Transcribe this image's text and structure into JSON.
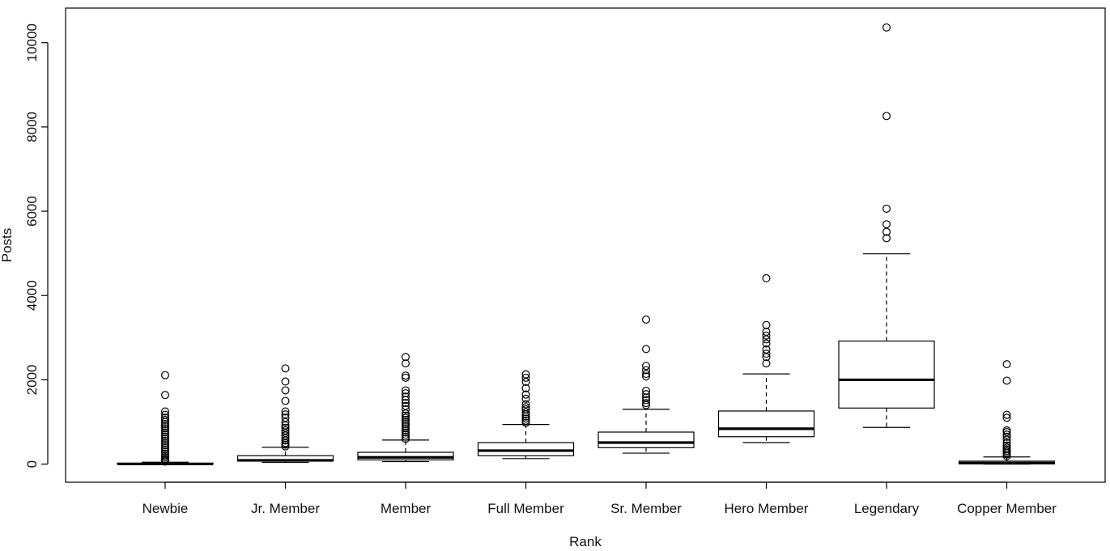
{
  "chart_data": {
    "type": "boxplot",
    "title": "",
    "xlabel": "Rank",
    "ylabel": "Posts",
    "ylim": [
      -430,
      10820
    ],
    "yticks": [
      0,
      2000,
      4000,
      6000,
      8000,
      10000
    ],
    "ytick_labels": [
      "0",
      "2000",
      "4000",
      "6000",
      "8000",
      "10000"
    ],
    "grid": false,
    "line_color": "#000000",
    "categories": [
      "Newbie",
      "Jr. Member",
      "Member",
      "Full Member",
      "Sr. Member",
      "Hero Member",
      "Legendary",
      "Copper Member"
    ],
    "boxes": [
      {
        "name": "Newbie",
        "lower_whisker": 0,
        "q1": 0,
        "median": 5,
        "q3": 20,
        "upper_whisker": 45,
        "outliers": [
          60,
          90,
          120,
          160,
          200,
          250,
          300,
          350,
          400,
          450,
          500,
          550,
          600,
          650,
          700,
          750,
          800,
          850,
          900,
          950,
          1000,
          1050,
          1100,
          1170,
          1250,
          1640,
          2110
        ]
      },
      {
        "name": "Jr. Member",
        "lower_whisker": 40,
        "q1": 70,
        "median": 90,
        "q3": 200,
        "upper_whisker": 400,
        "outliers": [
          420,
          460,
          500,
          560,
          620,
          680,
          740,
          800,
          860,
          920,
          1000,
          1100,
          1180,
          1250,
          1500,
          1750,
          1960,
          2270
        ]
      },
      {
        "name": "Member",
        "lower_whisker": 60,
        "q1": 100,
        "median": 160,
        "q3": 280,
        "upper_whisker": 570,
        "outliers": [
          600,
          650,
          700,
          750,
          800,
          850,
          900,
          950,
          1000,
          1050,
          1100,
          1150,
          1200,
          1300,
          1380,
          1450,
          1520,
          1600,
          1680,
          1750,
          2050,
          2100,
          2390,
          2540
        ]
      },
      {
        "name": "Full Member",
        "lower_whisker": 130,
        "q1": 200,
        "median": 320,
        "q3": 510,
        "upper_whisker": 940,
        "outliers": [
          980,
          1030,
          1080,
          1130,
          1180,
          1230,
          1300,
          1350,
          1420,
          1550,
          1650,
          1800,
          1950,
          2050,
          2130
        ]
      },
      {
        "name": "Sr. Member",
        "lower_whisker": 260,
        "q1": 390,
        "median": 510,
        "q3": 760,
        "upper_whisker": 1300,
        "outliers": [
          1400,
          1450,
          1520,
          1580,
          1660,
          1740,
          2080,
          2140,
          2230,
          2330,
          2730,
          3430
        ]
      },
      {
        "name": "Hero Member",
        "lower_whisker": 510,
        "q1": 650,
        "median": 840,
        "q3": 1260,
        "upper_whisker": 2140,
        "outliers": [
          2390,
          2540,
          2620,
          2720,
          2860,
          2960,
          3050,
          3140,
          3300,
          4410
        ]
      },
      {
        "name": "Legendary",
        "lower_whisker": 870,
        "q1": 1330,
        "median": 2000,
        "q3": 2920,
        "upper_whisker": 4990,
        "outliers": [
          5360,
          5510,
          5690,
          6060,
          8260,
          10360
        ]
      },
      {
        "name": "Copper Member",
        "lower_whisker": 0,
        "q1": 5,
        "median": 25,
        "q3": 70,
        "upper_whisker": 170,
        "outliers": [
          190,
          230,
          270,
          310,
          350,
          390,
          440,
          500,
          580,
          650,
          700,
          760,
          800,
          1100,
          1170,
          1980,
          2370
        ]
      }
    ]
  }
}
